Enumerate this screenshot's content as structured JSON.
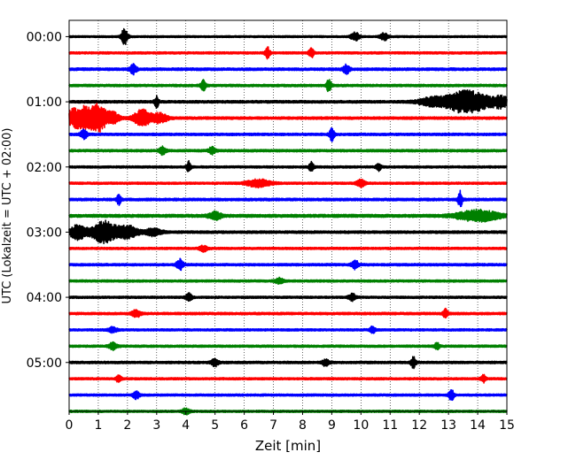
{
  "chart_data": {
    "type": "line",
    "title": "",
    "xlabel": "Zeit  [min]",
    "ylabel": "UTC (Lokalzeit = UTC + 02:00)",
    "xlim": [
      0,
      15
    ],
    "x_ticks": [
      0,
      1,
      2,
      3,
      4,
      5,
      6,
      7,
      8,
      9,
      10,
      11,
      12,
      13,
      14,
      15
    ],
    "x_grid": "dotted vertical",
    "ylim_minutes": [
      -15,
      345
    ],
    "y_inverted": true,
    "y_ticks": [
      {
        "minutes": 0,
        "label": "00:00"
      },
      {
        "minutes": 60,
        "label": "01:00"
      },
      {
        "minutes": 120,
        "label": "02:00"
      },
      {
        "minutes": 180,
        "label": "03:00"
      },
      {
        "minutes": 240,
        "label": "04:00"
      },
      {
        "minutes": 300,
        "label": "05:00"
      }
    ],
    "trace_interval_minutes": 15,
    "color_cycle": [
      "#000000",
      "#ff0000",
      "#0000ff",
      "#008000"
    ],
    "traces": [
      {
        "start_minutes": 0,
        "noise": 0.1,
        "events": [
          {
            "t": 1.9,
            "amp": 0.9,
            "w": 0.08
          },
          {
            "t": 9.8,
            "amp": 0.5,
            "w": 0.1
          },
          {
            "t": 10.8,
            "amp": 0.4,
            "w": 0.1
          }
        ]
      },
      {
        "start_minutes": 15,
        "noise": 0.12,
        "events": [
          {
            "t": 6.8,
            "amp": 0.6,
            "w": 0.06
          },
          {
            "t": 8.3,
            "amp": 0.5,
            "w": 0.06
          }
        ]
      },
      {
        "start_minutes": 30,
        "noise": 0.14,
        "events": [
          {
            "t": 2.2,
            "amp": 0.5,
            "w": 0.08
          },
          {
            "t": 9.5,
            "amp": 0.5,
            "w": 0.08
          }
        ]
      },
      {
        "start_minutes": 45,
        "noise": 0.13,
        "events": [
          {
            "t": 4.6,
            "amp": 0.6,
            "w": 0.06
          },
          {
            "t": 8.9,
            "amp": 0.7,
            "w": 0.06
          }
        ]
      },
      {
        "start_minutes": 60,
        "noise": 0.14,
        "events": [
          {
            "t": 3.0,
            "amp": 0.6,
            "w": 0.05
          },
          {
            "t": 12.5,
            "amp": 0.5,
            "w": 0.35
          },
          {
            "t": 13.3,
            "amp": 0.7,
            "w": 0.3
          },
          {
            "t": 13.9,
            "amp": 1.0,
            "w": 0.4
          },
          {
            "t": 14.8,
            "amp": 0.6,
            "w": 0.2
          }
        ]
      },
      {
        "start_minutes": 75,
        "noise": 0.14,
        "events": [
          {
            "t": 0.1,
            "amp": 0.8,
            "w": 0.15
          },
          {
            "t": 0.5,
            "amp": 1.2,
            "w": 0.2
          },
          {
            "t": 1.0,
            "amp": 1.5,
            "w": 0.2
          },
          {
            "t": 1.5,
            "amp": 0.6,
            "w": 0.15
          },
          {
            "t": 2.5,
            "amp": 0.9,
            "w": 0.2
          },
          {
            "t": 3.1,
            "amp": 0.5,
            "w": 0.2
          }
        ]
      },
      {
        "start_minutes": 90,
        "noise": 0.13,
        "events": [
          {
            "t": 0.5,
            "amp": 0.5,
            "w": 0.08
          },
          {
            "t": 9.0,
            "amp": 0.7,
            "w": 0.06
          }
        ]
      },
      {
        "start_minutes": 105,
        "noise": 0.13,
        "events": [
          {
            "t": 3.2,
            "amp": 0.4,
            "w": 0.08
          },
          {
            "t": 4.9,
            "amp": 0.4,
            "w": 0.08
          }
        ]
      },
      {
        "start_minutes": 120,
        "noise": 0.12,
        "events": [
          {
            "t": 4.1,
            "amp": 0.6,
            "w": 0.05
          },
          {
            "t": 8.3,
            "amp": 0.5,
            "w": 0.06
          },
          {
            "t": 10.6,
            "amp": 0.4,
            "w": 0.06
          }
        ]
      },
      {
        "start_minutes": 135,
        "noise": 0.12,
        "events": [
          {
            "t": 6.5,
            "amp": 0.4,
            "w": 0.3
          },
          {
            "t": 10.0,
            "amp": 0.4,
            "w": 0.1
          }
        ]
      },
      {
        "start_minutes": 150,
        "noise": 0.14,
        "events": [
          {
            "t": 1.7,
            "amp": 0.6,
            "w": 0.05
          },
          {
            "t": 13.4,
            "amp": 0.9,
            "w": 0.05
          }
        ]
      },
      {
        "start_minutes": 165,
        "noise": 0.16,
        "events": [
          {
            "t": 5.0,
            "amp": 0.4,
            "w": 0.15
          },
          {
            "t": 14.0,
            "amp": 0.6,
            "w": 0.5
          }
        ]
      },
      {
        "start_minutes": 180,
        "noise": 0.14,
        "events": [
          {
            "t": 0.3,
            "amp": 0.8,
            "w": 0.2
          },
          {
            "t": 1.2,
            "amp": 1.2,
            "w": 0.3
          },
          {
            "t": 2.0,
            "amp": 0.7,
            "w": 0.25
          },
          {
            "t": 2.9,
            "amp": 0.4,
            "w": 0.2
          }
        ]
      },
      {
        "start_minutes": 195,
        "noise": 0.12,
        "events": [
          {
            "t": 4.6,
            "amp": 0.3,
            "w": 0.1
          }
        ]
      },
      {
        "start_minutes": 210,
        "noise": 0.13,
        "events": [
          {
            "t": 3.8,
            "amp": 0.6,
            "w": 0.08
          },
          {
            "t": 9.8,
            "amp": 0.5,
            "w": 0.08
          }
        ]
      },
      {
        "start_minutes": 225,
        "noise": 0.12,
        "events": [
          {
            "t": 7.2,
            "amp": 0.3,
            "w": 0.1
          }
        ]
      },
      {
        "start_minutes": 240,
        "noise": 0.12,
        "events": [
          {
            "t": 4.1,
            "amp": 0.4,
            "w": 0.08
          },
          {
            "t": 9.7,
            "amp": 0.4,
            "w": 0.08
          }
        ]
      },
      {
        "start_minutes": 255,
        "noise": 0.13,
        "events": [
          {
            "t": 2.3,
            "amp": 0.4,
            "w": 0.1
          },
          {
            "t": 12.9,
            "amp": 0.5,
            "w": 0.06
          }
        ]
      },
      {
        "start_minutes": 270,
        "noise": 0.12,
        "events": [
          {
            "t": 1.5,
            "amp": 0.3,
            "w": 0.1
          },
          {
            "t": 10.4,
            "amp": 0.4,
            "w": 0.06
          }
        ]
      },
      {
        "start_minutes": 285,
        "noise": 0.12,
        "events": [
          {
            "t": 1.5,
            "amp": 0.4,
            "w": 0.1
          },
          {
            "t": 12.6,
            "amp": 0.4,
            "w": 0.06
          }
        ]
      },
      {
        "start_minutes": 300,
        "noise": 0.13,
        "events": [
          {
            "t": 5.0,
            "amp": 0.4,
            "w": 0.08
          },
          {
            "t": 8.8,
            "amp": 0.4,
            "w": 0.08
          },
          {
            "t": 11.8,
            "amp": 0.6,
            "w": 0.06
          }
        ]
      },
      {
        "start_minutes": 315,
        "noise": 0.12,
        "events": [
          {
            "t": 1.7,
            "amp": 0.4,
            "w": 0.06
          },
          {
            "t": 14.2,
            "amp": 0.4,
            "w": 0.06
          }
        ]
      },
      {
        "start_minutes": 330,
        "noise": 0.12,
        "events": [
          {
            "t": 2.3,
            "amp": 0.4,
            "w": 0.08
          },
          {
            "t": 13.1,
            "amp": 0.7,
            "w": 0.06
          }
        ]
      },
      {
        "start_minutes": 345,
        "noise": 0.12,
        "events": [
          {
            "t": 4.0,
            "amp": 0.3,
            "w": 0.1
          }
        ]
      }
    ]
  }
}
